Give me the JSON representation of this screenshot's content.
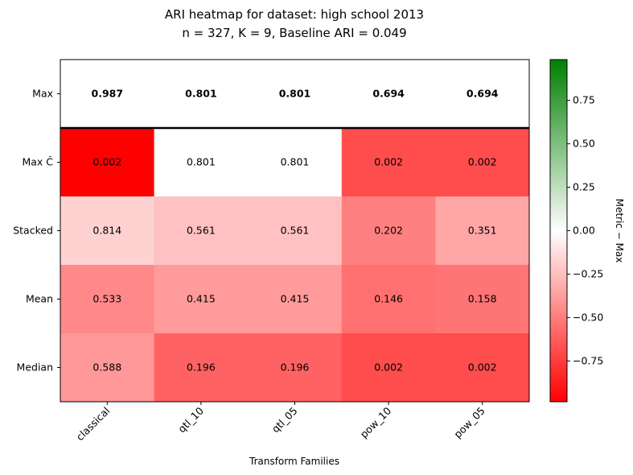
{
  "chart_data": {
    "type": "heatmap",
    "title_lines": [
      "ARI heatmap for dataset: high school 2013",
      "n = 327, K = 9, Baseline ARI = 0.049"
    ],
    "xlabel": "Transform Families",
    "ylabel": "",
    "columns": [
      "classical",
      "qtl_10",
      "qtl_05",
      "pow_10",
      "pow_05"
    ],
    "rows": [
      "Max",
      "Max Ĉ",
      "Stacked",
      "Mean",
      "Median"
    ],
    "values": [
      [
        0.987,
        0.801,
        0.801,
        0.694,
        0.694
      ],
      [
        0.002,
        0.801,
        0.801,
        0.002,
        0.002
      ],
      [
        0.814,
        0.561,
        0.561,
        0.202,
        0.351
      ],
      [
        0.533,
        0.415,
        0.415,
        0.146,
        0.158
      ],
      [
        0.588,
        0.196,
        0.196,
        0.002,
        0.002
      ]
    ],
    "cell_labels": [
      [
        "0.987",
        "0.801",
        "0.801",
        "0.694",
        "0.694"
      ],
      [
        "0.002",
        "0.801",
        "0.801",
        "0.002",
        "0.002"
      ],
      [
        "0.814",
        "0.561",
        "0.561",
        "0.202",
        "0.351"
      ],
      [
        "0.533",
        "0.415",
        "0.415",
        "0.146",
        "0.158"
      ],
      [
        "0.588",
        "0.196",
        "0.196",
        "0.002",
        "0.002"
      ]
    ],
    "bold_rows": [
      "Max"
    ],
    "color_metric": "Metric − Max",
    "reference_row": "Max",
    "colorbar": {
      "label": "Metric − Max",
      "vmin": -0.985,
      "vmax": 0.985,
      "ticks": [
        0.75,
        0.5,
        0.25,
        0.0,
        -0.25,
        -0.5,
        -0.75
      ],
      "tick_labels": [
        "0.75",
        "0.50",
        "0.25",
        "0.00",
        "−0.25",
        "−0.50",
        "−0.75"
      ],
      "colors": {
        "low": "#ff0000",
        "mid": "#ffffff",
        "high": "#008000"
      }
    },
    "separator_after_row": "Max",
    "grid": false
  }
}
